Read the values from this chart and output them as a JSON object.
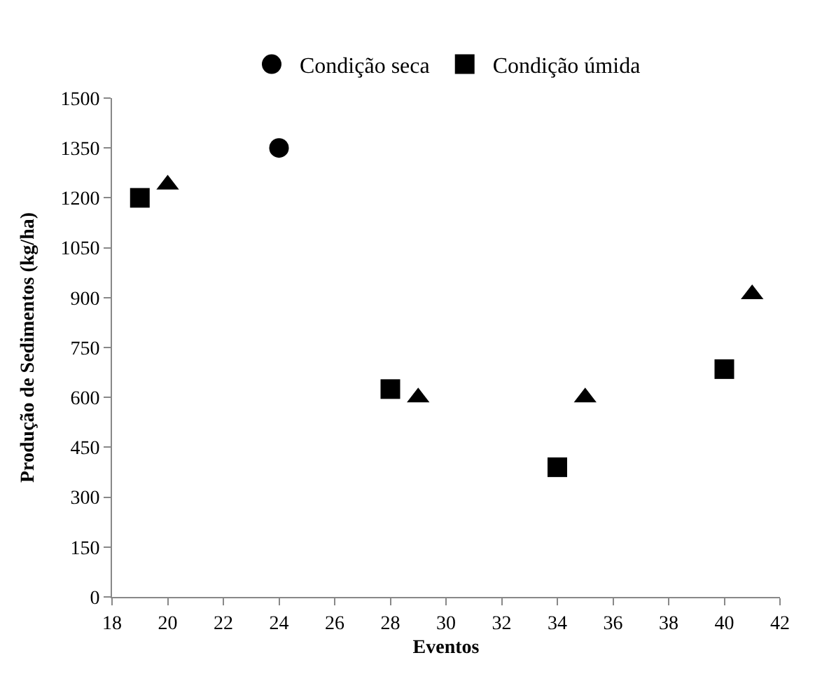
{
  "chart_data": {
    "type": "scatter",
    "xlabel": "Eventos",
    "ylabel": "Produção de Sedimentos (kg/ha)",
    "xlim": [
      18,
      42
    ],
    "xticks": [
      18,
      20,
      22,
      24,
      26,
      28,
      30,
      32,
      34,
      36,
      38,
      40,
      42
    ],
    "ylim": [
      0,
      1500
    ],
    "yticks": [
      0,
      150,
      300,
      450,
      600,
      750,
      900,
      1050,
      1200,
      1350,
      1500
    ],
    "legend": "top",
    "series": [
      {
        "name": "Condição seca",
        "color": "#000000",
        "marker": "circle",
        "x": [
          24
        ],
        "values": [
          1350
        ]
      },
      {
        "name": "Condição úmida",
        "color": "#000000",
        "marker": "square",
        "x": [
          19,
          28,
          34,
          40
        ],
        "values": [
          1200,
          625,
          390,
          685
        ]
      },
      {
        "color": "#000000",
        "marker": "triangle",
        "x": [
          20,
          29,
          35,
          41
        ],
        "values": [
          1240,
          600,
          600,
          910
        ]
      }
    ]
  }
}
